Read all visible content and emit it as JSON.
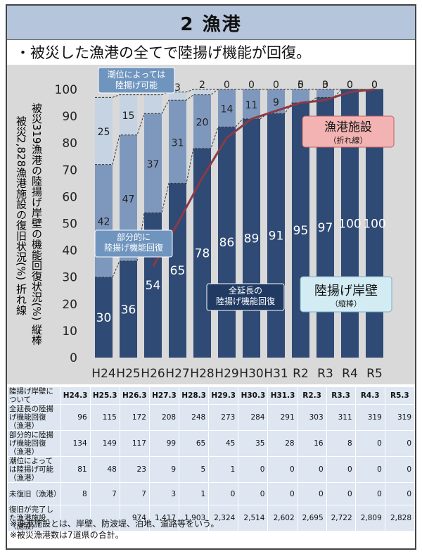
{
  "page": {
    "title": "2 漁港",
    "subtitle": "・被災した漁港の全てで陸揚げ機能が回復。"
  },
  "chart_data": {
    "type": "bar",
    "stacked": true,
    "ylabel_col1": "被災319漁港の陸揚げ岸壁の機能回復状況(%) 縦棒",
    "ylabel_col2": "被災2,828漁港施設の復旧状況(%) 折れ線",
    "ylim": [
      0,
      100
    ],
    "yticks": [
      0,
      10,
      20,
      30,
      40,
      50,
      60,
      70,
      80,
      90,
      100
    ],
    "categories": [
      "H24",
      "H25",
      "H26",
      "H27",
      "H28",
      "H29",
      "H30",
      "H31",
      "R2",
      "R3",
      "R4",
      "R5"
    ],
    "series": [
      {
        "name": "全延長の陸揚げ機能回復",
        "color": "#2f4a74",
        "values": [
          30,
          36,
          54,
          65,
          78,
          86,
          89,
          91,
          95,
          97,
          100,
          100
        ]
      },
      {
        "name": "部分的に陸揚げ機能回復",
        "color": "#7e98bd",
        "values": [
          42,
          47,
          37,
          31,
          20,
          14,
          11,
          9,
          5,
          3,
          0,
          0
        ]
      },
      {
        "name": "潮位によっては陸揚げ可能",
        "color": "#c6d3e3",
        "values": [
          25,
          15,
          7,
          3,
          2,
          0,
          0,
          0,
          0,
          0,
          0,
          0
        ]
      }
    ],
    "line_series": {
      "name": "漁港施設",
      "color": "#8b3a45",
      "start_index": 2,
      "values": [
        34,
        50,
        67,
        82,
        89,
        92,
        95,
        96,
        99,
        100
      ]
    },
    "callouts": {
      "tide": "潮位によっては\n陸揚げ可能",
      "partial": "部分的に\n陸揚げ機能回復",
      "full": "全延長の\n陸揚げ機能回復",
      "facility_title": "漁港施設",
      "facility_sub": "（折れ線）",
      "wharf_title": "陸揚げ岸壁",
      "wharf_sub": "（縦棒）"
    }
  },
  "table": {
    "header": [
      "陸揚げ岸壁について",
      "H24.3",
      "H25.3",
      "H26.3",
      "H27.3",
      "H28.3",
      "H29.3",
      "H30.3",
      "H31.3",
      "R2.3",
      "R3.3",
      "R4.3",
      "R5.3"
    ],
    "rows": [
      {
        "label": "全延長の陸揚げ機能回復（漁港）",
        "cells": [
          "96",
          "115",
          "172",
          "208",
          "248",
          "273",
          "284",
          "291",
          "303",
          "311",
          "319",
          "319"
        ]
      },
      {
        "label": "部分的に陸揚げ機能回復（漁港）",
        "cells": [
          "134",
          "149",
          "117",
          "99",
          "65",
          "45",
          "35",
          "28",
          "16",
          "8",
          "0",
          "0"
        ]
      },
      {
        "label": "潮位によっては陸揚げ可能（漁港）",
        "cells": [
          "81",
          "48",
          "23",
          "9",
          "5",
          "1",
          "0",
          "0",
          "0",
          "0",
          "0",
          "0"
        ]
      },
      {
        "label": "未復旧（漁港）",
        "cells": [
          "8",
          "7",
          "7",
          "3",
          "1",
          "0",
          "0",
          "0",
          "0",
          "0",
          "0",
          "0"
        ]
      },
      {
        "label": "復旧が完了した漁港施設（施設）",
        "cells": [
          "",
          "",
          "974",
          "1,417",
          "1,903",
          "2,324",
          "2,514",
          "2,602",
          "2,695",
          "2,722",
          "2,809",
          "2,828"
        ]
      }
    ]
  },
  "notes": [
    "※漁港施設とは、岸壁、防波堤、泊地、道路等をいう。",
    "※被災漁港数は7道県の合計。"
  ]
}
